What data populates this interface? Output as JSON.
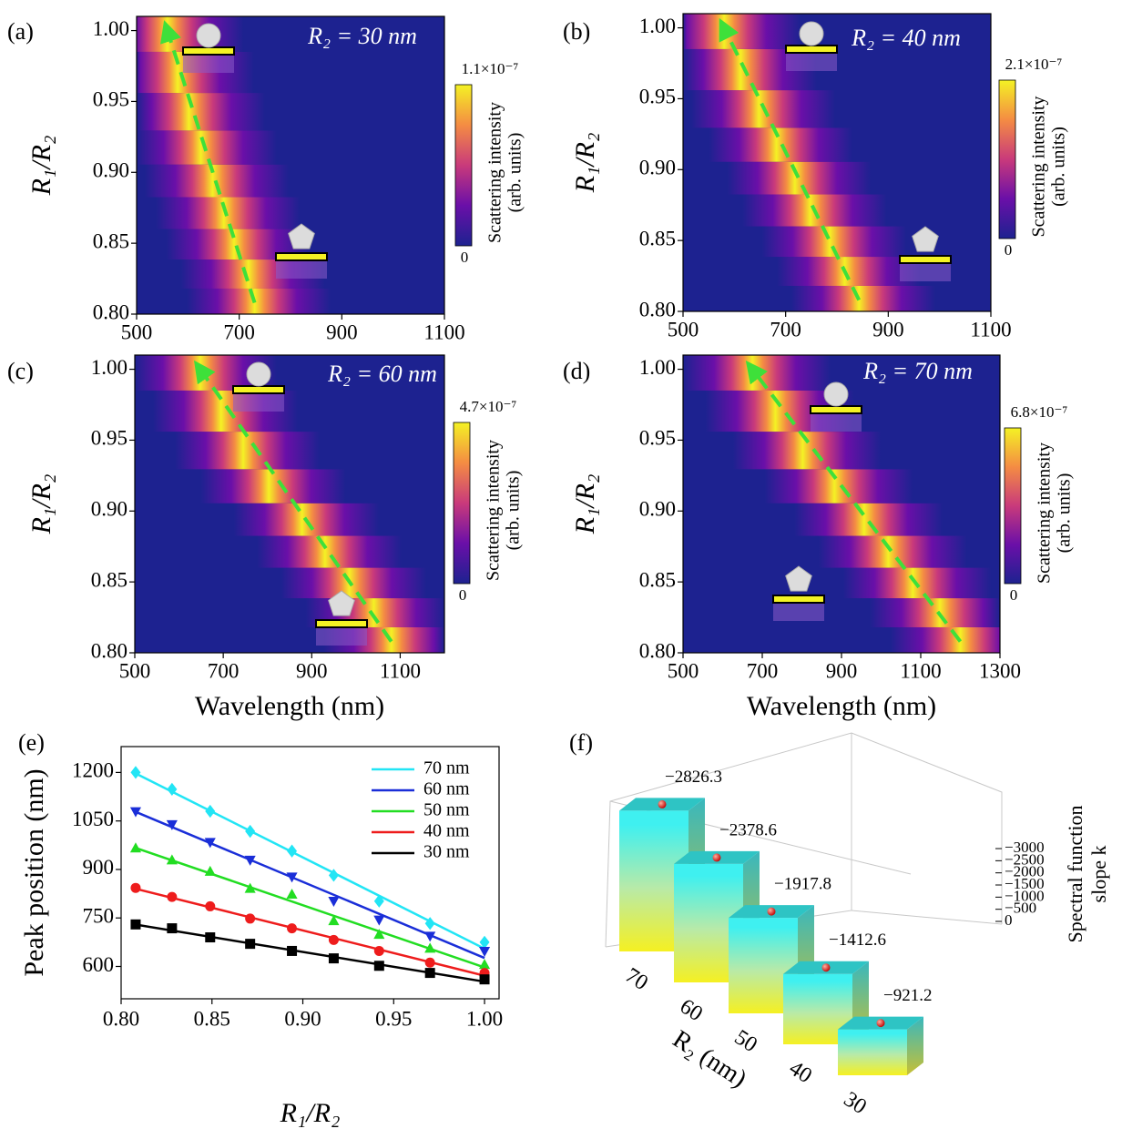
{
  "chart_data": [
    {
      "type": "heatmap",
      "label": "(a)",
      "title": "R₂ = 30 nm",
      "ylabel": "R₁/R₂",
      "xlim": [
        500,
        1100
      ],
      "xticks": [
        500,
        700,
        900,
        1100
      ],
      "ylim": [
        0.8,
        1.01
      ],
      "yticks": [
        {
          "value": 0.8,
          "label": "0.80"
        },
        0.85,
        {
          "value": 0.9,
          "label": "0.90"
        },
        0.95,
        {
          "value": 1,
          "label": "1.00"
        }
      ],
      "rows": [
        0.808,
        0.828,
        0.849,
        0.871,
        0.894,
        0.917,
        0.942,
        0.97,
        1.0
      ],
      "peaks": [
        730,
        718,
        690,
        670,
        648,
        625,
        602,
        580,
        560
      ],
      "colors": [
        "#1d2290",
        "#6a0fa8",
        "#c93a7b",
        "#f48c43",
        "#f4f224"
      ],
      "clim": [
        0,
        1.1e-07
      ],
      "cticks": [
        0,
        {
          "value": 1.1e-07,
          "label": "1.1×10⁻⁷"
        }
      ],
      "colorbar_label": [
        "Scattering intensity",
        "(arb. units)"
      ],
      "arrow_color": "#3ee03a"
    },
    {
      "type": "heatmap",
      "label": "(b)",
      "title": "R₂ = 40 nm",
      "ylabel": "R₁/R₂",
      "xlim": [
        500,
        1100
      ],
      "xticks": [
        500,
        700,
        900,
        1100
      ],
      "ylim": [
        0.8,
        1.01
      ],
      "yticks": [
        {
          "value": 0.8,
          "label": "0.80"
        },
        0.85,
        {
          "value": 0.9,
          "label": "0.90"
        },
        0.95,
        {
          "value": 1,
          "label": "1.00"
        }
      ],
      "rows": [
        0.808,
        0.828,
        0.849,
        0.871,
        0.894,
        0.917,
        0.942,
        0.97,
        1.0
      ],
      "peaks": [
        843,
        815,
        786,
        748,
        718,
        682,
        648,
        612,
        580
      ],
      "colors": [
        "#1d2290",
        "#6a0fa8",
        "#c93a7b",
        "#f48c43",
        "#f4f224"
      ],
      "clim": [
        0,
        2.1e-07
      ],
      "cticks": [
        0,
        {
          "value": 2.1e-07,
          "label": "2.1×10⁻⁷"
        }
      ],
      "colorbar_label": [
        "Scattering intensity",
        "(arb. units)"
      ],
      "arrow_color": "#3ee03a"
    },
    {
      "type": "heatmap",
      "label": "(c)",
      "title": "R₂ = 60 nm",
      "ylabel": "R₁/R₂",
      "xlabel": "Wavelength (nm)",
      "xlim": [
        500,
        1200
      ],
      "xticks": [
        500,
        700,
        900,
        1100
      ],
      "ylim": [
        0.8,
        1.01
      ],
      "yticks": [
        {
          "value": 0.8,
          "label": "0.80"
        },
        0.85,
        {
          "value": 0.9,
          "label": "0.90"
        },
        0.95,
        {
          "value": 1,
          "label": "1.00"
        }
      ],
      "rows": [
        0.808,
        0.828,
        0.849,
        0.871,
        0.894,
        0.917,
        0.942,
        0.97,
        1.0
      ],
      "peaks": [
        1080,
        1040,
        985,
        930,
        878,
        803,
        745,
        695,
        648
      ],
      "colors": [
        "#1d2290",
        "#6a0fa8",
        "#c93a7b",
        "#f48c43",
        "#f4f224"
      ],
      "clim": [
        0,
        4.7e-07
      ],
      "cticks": [
        0,
        {
          "value": 4.7e-07,
          "label": "4.7×10⁻⁷"
        }
      ],
      "colorbar_label": [
        "Scattering intensity",
        "(arb. units)"
      ],
      "arrow_color": "#3ee03a"
    },
    {
      "type": "heatmap",
      "label": "(d)",
      "title": "R₂ = 70 nm",
      "ylabel": "R₁/R₂",
      "xlabel": "Wavelength (nm)",
      "xlim": [
        500,
        1300
      ],
      "xticks": [
        500,
        700,
        900,
        1100,
        1300
      ],
      "ylim": [
        0.8,
        1.01
      ],
      "yticks": [
        {
          "value": 0.8,
          "label": "0.80"
        },
        0.85,
        {
          "value": 0.9,
          "label": "0.90"
        },
        0.95,
        {
          "value": 1,
          "label": "1.00"
        }
      ],
      "rows": [
        0.808,
        0.828,
        0.849,
        0.871,
        0.894,
        0.917,
        0.942,
        0.97,
        1.0
      ],
      "peaks": [
        1200,
        1148,
        1080,
        1018,
        957,
        882,
        802,
        733,
        675
      ],
      "colors": [
        "#1d2290",
        "#6a0fa8",
        "#c93a7b",
        "#f48c43",
        "#f4f224"
      ],
      "clim": [
        0,
        6.8e-07
      ],
      "cticks": [
        0,
        {
          "value": 6.8e-07,
          "label": "6.8×10⁻⁷"
        }
      ],
      "colorbar_label": [
        "Scattering intensity",
        "(arb. units)"
      ],
      "arrow_color": "#3ee03a"
    },
    {
      "type": "line",
      "label": "(e)",
      "xlabel": "R₁/R₂",
      "ylabel": "Peak position (nm)",
      "xlim": [
        0.8,
        1.008
      ],
      "xticks": [
        {
          "value": 0.8,
          "label": "0.80"
        },
        0.85,
        {
          "value": 0.9,
          "label": "0.90"
        },
        0.95,
        {
          "value": 1,
          "label": "1.00"
        }
      ],
      "ylim": [
        500,
        1280
      ],
      "yticks": [
        600,
        750,
        900,
        1050,
        1200
      ],
      "x": [
        0.808,
        0.828,
        0.849,
        0.871,
        0.894,
        0.917,
        0.942,
        0.97,
        1.0
      ],
      "series": [
        {
          "name": "70 nm",
          "color": "#22e5f5",
          "marker": "diamond",
          "values": [
            1200,
            1148,
            1080,
            1018,
            957,
            882,
            802,
            733,
            675
          ]
        },
        {
          "name": "60 nm",
          "color": "#1a2ed8",
          "marker": "triangle-down",
          "values": [
            1080,
            1040,
            985,
            930,
            878,
            803,
            745,
            695,
            648
          ]
        },
        {
          "name": "50 nm",
          "color": "#22dd22",
          "marker": "triangle-up",
          "values": [
            965,
            928,
            893,
            840,
            822,
            740,
            698,
            655,
            605
          ]
        },
        {
          "name": "40 nm",
          "color": "#ee1c1c",
          "marker": "circle",
          "values": [
            843,
            815,
            786,
            748,
            718,
            682,
            648,
            612,
            580
          ]
        },
        {
          "name": "30 nm",
          "color": "#000000",
          "marker": "square",
          "values": [
            730,
            718,
            690,
            670,
            648,
            625,
            602,
            580,
            560
          ]
        }
      ]
    },
    {
      "type": "bar3d",
      "label": "(f)",
      "xlabel": "R₂ (nm)",
      "zlabel": [
        "Spectral function",
        "slope k"
      ],
      "categories": [
        "70",
        "60",
        "50",
        "40",
        "30"
      ],
      "values": [
        -2826.3,
        -2378.6,
        -1917.8,
        -1412.6,
        -921.2
      ],
      "value_labels": [
        "−2826.3",
        "−2378.6",
        "−1917.8",
        "−1412.6",
        "−921.2"
      ],
      "zlim": [
        0,
        -3200
      ],
      "zticks": [
        0,
        {
          "value": -500,
          "label": "−500"
        },
        {
          "value": -1000,
          "label": "−1000"
        },
        {
          "value": -1500,
          "label": "−1500"
        },
        {
          "value": -2000,
          "label": "−2000"
        },
        {
          "value": -2500,
          "label": "−2500"
        },
        {
          "value": -3000,
          "label": "−3000"
        }
      ]
    }
  ]
}
